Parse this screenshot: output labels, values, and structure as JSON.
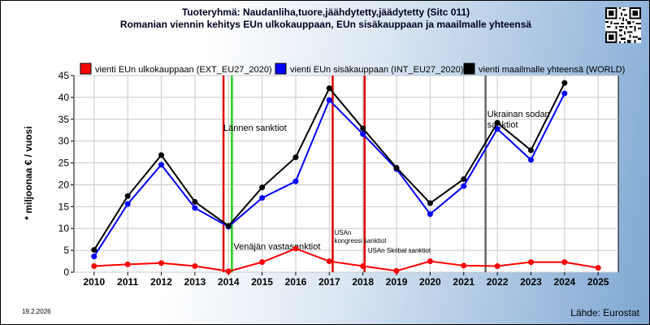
{
  "header": {
    "title": "Tuoteryhmä: Naudanliha,tuore,jäähdytetty,jäädytetty (Sitc 011)",
    "subtitle": "Romanian viennin kehitys EUn ulkokauppaan, EUn sisäkauppaan ja maailmalle yhteensä"
  },
  "footer": {
    "date": "19.2.2026",
    "source": "Lähde: Eurostat"
  },
  "chart_data": {
    "type": "line",
    "ylabel": "* miljoonaa € / vuosi",
    "xlabel": "",
    "ylim": [
      0,
      45
    ],
    "yticks": [
      0,
      5,
      10,
      15,
      20,
      25,
      30,
      35,
      40,
      45
    ],
    "grid": true,
    "legend_position": "top",
    "categories": [
      "2010",
      "2011",
      "2012",
      "2013",
      "2014",
      "2015",
      "2016",
      "2017",
      "2018",
      "2019",
      "2020",
      "2021",
      "2022",
      "2023",
      "2024",
      "2025"
    ],
    "series": [
      {
        "name": "vienti EUn ulkokauppaan (EXT_EU27_2020)",
        "color": "#ff0000",
        "values": [
          1.4,
          1.8,
          2.1,
          1.4,
          0.2,
          2.3,
          5.4,
          2.5,
          1.4,
          0.3,
          2.5,
          1.5,
          1.4,
          2.3,
          2.3,
          1.0
        ]
      },
      {
        "name": "vienti EUn sisäkauppaan (INT_EU27_2020)",
        "color": "#0000ff",
        "values": [
          3.6,
          15.6,
          24.6,
          14.7,
          10.4,
          17.0,
          20.8,
          39.4,
          31.6,
          23.6,
          13.3,
          19.7,
          32.8,
          25.7,
          40.9,
          null
        ]
      },
      {
        "name": "vienti maailmalle yhteensä (WORLD)",
        "color": "#000000",
        "values": [
          5.1,
          17.4,
          26.8,
          16.1,
          10.6,
          19.4,
          26.3,
          42.1,
          32.9,
          23.9,
          15.8,
          21.3,
          34.2,
          27.9,
          43.3,
          null
        ]
      }
    ],
    "annotations": [
      {
        "text": "Lännen sanktiot",
        "x": 2013.85,
        "color": "#dd0000"
      },
      {
        "text": "Venäjän vastasanktiot",
        "x": 2014.1,
        "color": "#22cc22"
      },
      {
        "text": "USAn kongressi sanktiot",
        "x": 2017.1,
        "color": "#dd0000"
      },
      {
        "text": "USAn Skribal sanktiot",
        "x": 2018.05,
        "color": "#dd0000"
      },
      {
        "text": "Ukrainan sodan sanktiot",
        "x": 2021.65,
        "color": "#666666"
      }
    ]
  }
}
